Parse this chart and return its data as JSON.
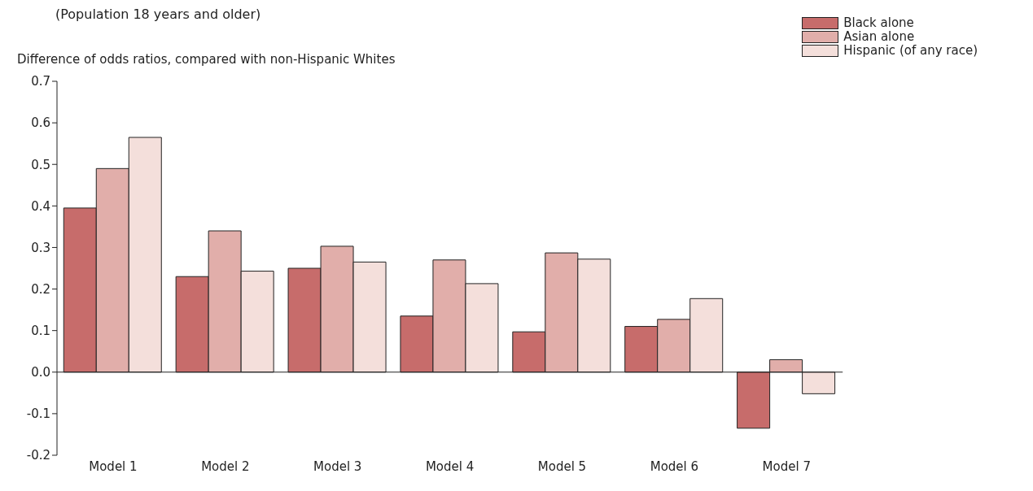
{
  "chart_data": {
    "type": "bar",
    "subtitle": "(Population 18 years and older)",
    "ylabel": "Difference of odds ratios, compared with non-Hispanic Whites",
    "categories": [
      "Model 1",
      "Model 2",
      "Model 3",
      "Model 4",
      "Model 5",
      "Model 6",
      "Model 7"
    ],
    "series": [
      {
        "name": "Black alone",
        "color": "#c76c6b",
        "values": [
          0.395,
          0.23,
          0.25,
          0.135,
          0.097,
          0.11,
          -0.135
        ]
      },
      {
        "name": "Asian alone",
        "color": "#e1aeaa",
        "values": [
          0.49,
          0.34,
          0.303,
          0.27,
          0.287,
          0.127,
          0.03
        ]
      },
      {
        "name": "Hispanic (of any race)",
        "color": "#f4dfdb",
        "values": [
          0.565,
          0.243,
          0.265,
          0.213,
          0.272,
          0.177,
          -0.052
        ]
      }
    ],
    "ylim": [
      -0.2,
      0.7
    ],
    "yticks": [
      {
        "value": -0.2,
        "label": "-0.2"
      },
      {
        "value": -0.1,
        "label": "-0.1"
      },
      {
        "value": 0,
        "label": "0.0"
      },
      {
        "value": 0.1,
        "label": "0.1"
      },
      {
        "value": 0.2,
        "label": "0.2"
      },
      {
        "value": 0.3,
        "label": "0.3"
      },
      {
        "value": 0.4,
        "label": "0.4"
      },
      {
        "value": 0.5,
        "label": "0.5"
      },
      {
        "value": 0.6,
        "label": "0.6"
      },
      {
        "value": 0.7,
        "label": "0.7"
      }
    ],
    "ref_lines": [
      {
        "axis": "y",
        "value": 0,
        "color": "#222222"
      }
    ],
    "grid": false,
    "legend": "top right"
  }
}
